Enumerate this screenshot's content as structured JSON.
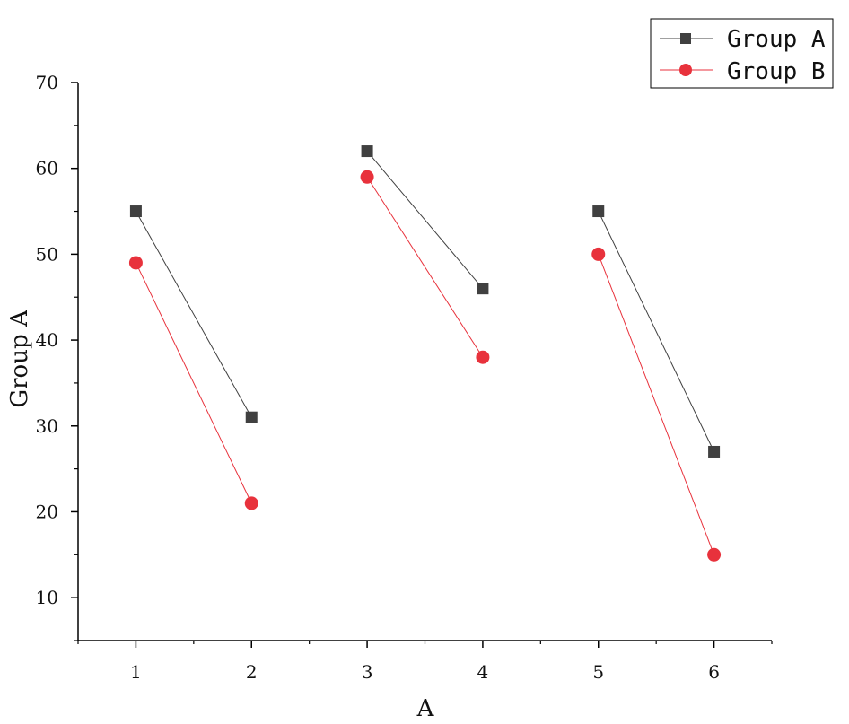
{
  "chart_data": {
    "type": "line",
    "title": "",
    "xlabel": "A",
    "ylabel": "Group A",
    "xlim": [
      0.5,
      6.5
    ],
    "ylim": [
      5,
      70
    ],
    "x_ticks": [
      1,
      2,
      3,
      4,
      5,
      6
    ],
    "y_ticks": [
      10,
      20,
      30,
      40,
      50,
      60,
      70
    ],
    "grid": false,
    "legend_position": "top-right",
    "series": [
      {
        "name": "Group A",
        "color": "#404040",
        "marker": "square",
        "segments": [
          [
            [
              1,
              55
            ],
            [
              2,
              31
            ]
          ],
          [
            [
              3,
              62
            ],
            [
              4,
              46
            ]
          ],
          [
            [
              5,
              55
            ],
            [
              6,
              27
            ]
          ]
        ]
      },
      {
        "name": "Group B",
        "color": "#e8323c",
        "marker": "circle",
        "segments": [
          [
            [
              1,
              49
            ],
            [
              2,
              21
            ]
          ],
          [
            [
              3,
              59
            ],
            [
              4,
              38
            ]
          ],
          [
            [
              5,
              50
            ],
            [
              6,
              15
            ]
          ]
        ]
      }
    ]
  }
}
